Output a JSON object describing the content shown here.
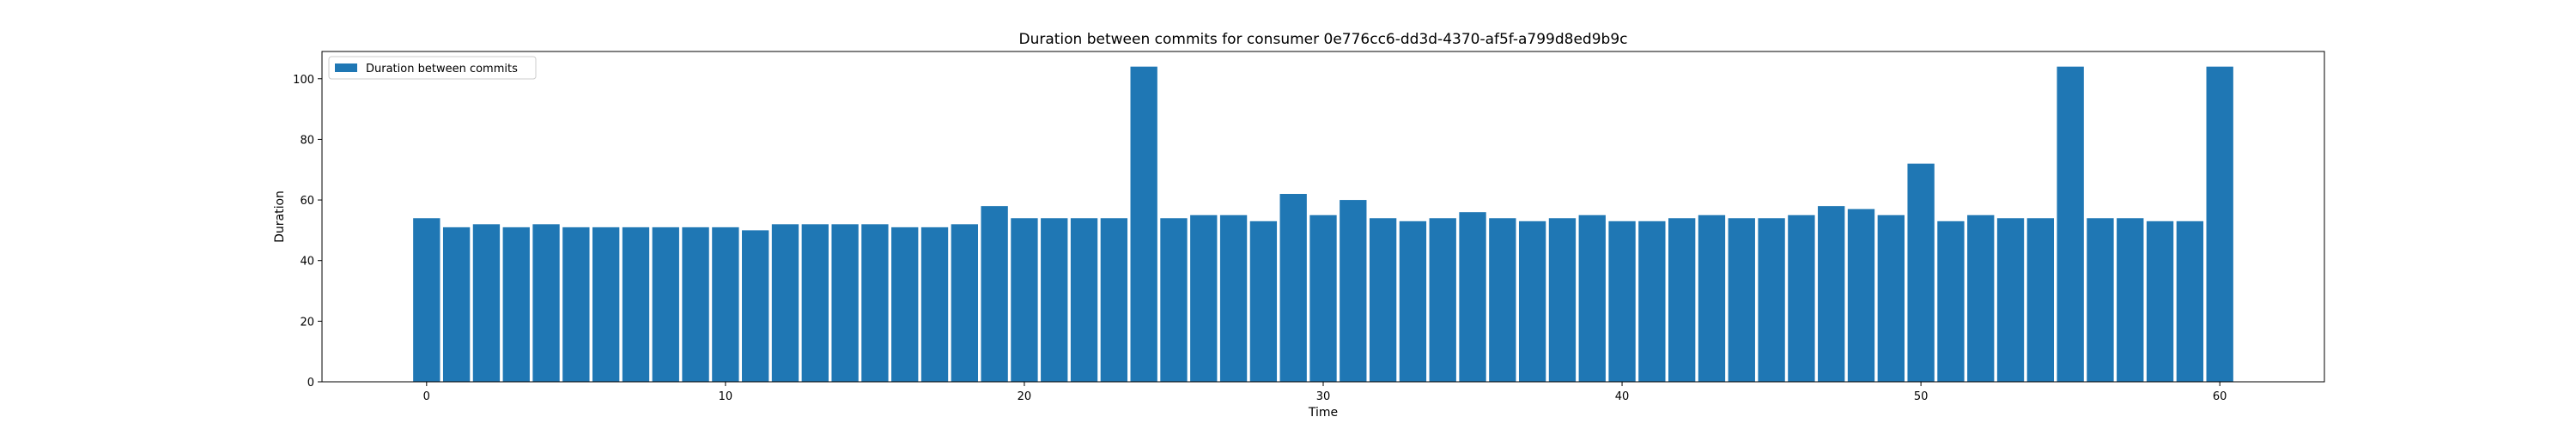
{
  "chart_data": {
    "type": "bar",
    "title": "Duration between commits for consumer 0e776cc6-dd3d-4370-af5f-a799d8ed9b9c",
    "xlabel": "Time",
    "ylabel": "Duration",
    "xlim": [
      -3.5,
      63.5
    ],
    "ylim": [
      0,
      109
    ],
    "xticks": [
      0,
      10,
      20,
      30,
      40,
      50,
      60
    ],
    "yticks": [
      0,
      20,
      40,
      60,
      80,
      100
    ],
    "grid": false,
    "legend_position": "upper left",
    "series": [
      {
        "name": "Duration between commits",
        "color": "#1f77b4",
        "x": [
          0,
          1,
          2,
          3,
          4,
          5,
          6,
          7,
          8,
          9,
          10,
          11,
          12,
          13,
          14,
          15,
          16,
          17,
          18,
          19,
          20,
          21,
          22,
          23,
          24,
          25,
          26,
          27,
          28,
          29,
          30,
          31,
          32,
          33,
          34,
          35,
          36,
          37,
          38,
          39,
          40,
          41,
          42,
          43,
          44,
          45,
          46,
          47,
          48,
          49,
          50,
          51,
          52,
          53,
          54,
          55,
          56,
          57,
          58,
          59,
          60
        ],
        "values": [
          54,
          51,
          52,
          51,
          52,
          51,
          51,
          51,
          51,
          51,
          51,
          50,
          52,
          52,
          52,
          52,
          51,
          51,
          52,
          58,
          54,
          54,
          54,
          54,
          104,
          54,
          55,
          55,
          53,
          62,
          55,
          60,
          54,
          53,
          54,
          56,
          54,
          53,
          54,
          55,
          53,
          53,
          54,
          55,
          54,
          54,
          55,
          58,
          57,
          55,
          72,
          53,
          55,
          54,
          54,
          104,
          54,
          54,
          53,
          53,
          104
        ]
      }
    ]
  }
}
